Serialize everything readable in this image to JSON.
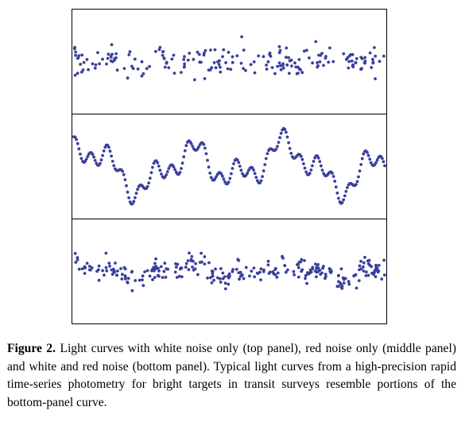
{
  "caption": {
    "label": "Figure 2.",
    "text": " Light curves with white noise only (top panel), red noise only (middle panel) and white and red noise (bottom panel). Typical light curves from a high-precision rapid time-series photometry for bright targets in transit surveys resemble portions of the bottom-panel curve."
  },
  "figure": {
    "point_color": "#3a3f9c",
    "panels": [
      {
        "name": "top",
        "noise": "white noise only",
        "points": 200
      },
      {
        "name": "middle",
        "noise": "red noise only",
        "points": 250
      },
      {
        "name": "bottom",
        "noise": "white and red noise",
        "points": 280
      }
    ]
  }
}
